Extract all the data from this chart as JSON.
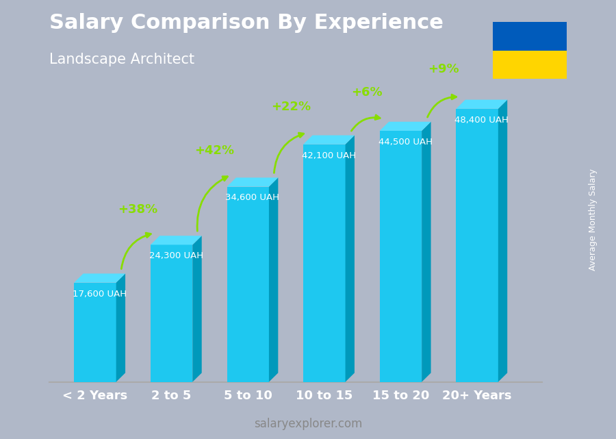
{
  "title": "Salary Comparison By Experience",
  "subtitle": "Landscape Architect",
  "categories": [
    "< 2 Years",
    "2 to 5",
    "5 to 10",
    "10 to 15",
    "15 to 20",
    "20+ Years"
  ],
  "values": [
    17600,
    24300,
    34600,
    42100,
    44500,
    48400
  ],
  "value_labels": [
    "17,600 UAH",
    "24,300 UAH",
    "34,600 UAH",
    "42,100 UAH",
    "44,500 UAH",
    "48,400 UAH"
  ],
  "pct_changes": [
    "+38%",
    "+42%",
    "+22%",
    "+6%",
    "+9%"
  ],
  "bar_color_top": "#00CFFF",
  "bar_color_mid": "#00AADD",
  "bar_color_dark": "#007FBB",
  "bar_color_side": "#005A8A",
  "bg_color": "#d0d8e0",
  "title_color": "#FFFFFF",
  "subtitle_color": "#FFFFFF",
  "ylabel_text": "Average Monthly Salary",
  "footer_text": "salaryexplorer.com",
  "pct_color": "#88DD00",
  "value_label_color": "#FFFFFF",
  "ukraine_flag_blue": "#005BBB",
  "ukraine_flag_yellow": "#FFD500",
  "depth": 0.18,
  "ylim_max": 56000
}
